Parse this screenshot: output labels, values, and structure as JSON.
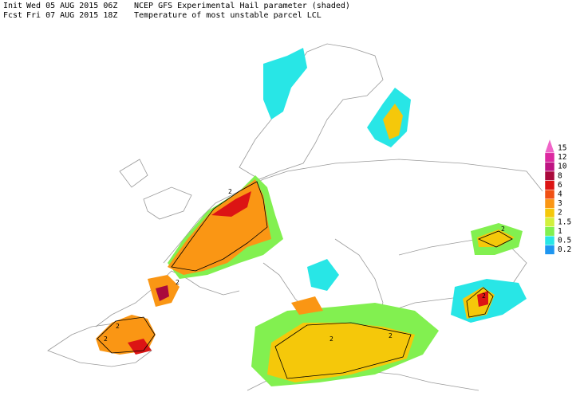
{
  "header": {
    "init_label": "Init",
    "init_time": "Wed 05 AUG 2015 06Z",
    "title": "NCEP GFS Experimental Hail parameter (shaded)",
    "fcst_label": "Fcst",
    "fcst_time": "Fri 07 AUG 2015 18Z",
    "subtitle": "Temperature of most unstable parcel LCL"
  },
  "legend": {
    "levels": [
      {
        "value": 15,
        "color": "#f064c8"
      },
      {
        "value": 12,
        "color": "#dc28a0"
      },
      {
        "value": 10,
        "color": "#be1482"
      },
      {
        "value": 8,
        "color": "#aa0a3c"
      },
      {
        "value": 6,
        "color": "#dc1414"
      },
      {
        "value": 4,
        "color": "#f05014"
      },
      {
        "value": 3,
        "color": "#fa9614"
      },
      {
        "value": 2,
        "color": "#f5c80a"
      },
      {
        "value": 1.5,
        "color": "#d2f03c"
      },
      {
        "value": 1,
        "color": "#82f050"
      },
      {
        "value": 0.5,
        "color": "#28e6e6"
      },
      {
        "value": 0.2,
        "color": "#1e96f0"
      }
    ]
  },
  "contour_labels": [
    "2",
    "2",
    "2",
    "2",
    "2",
    "2",
    "2",
    "2"
  ]
}
